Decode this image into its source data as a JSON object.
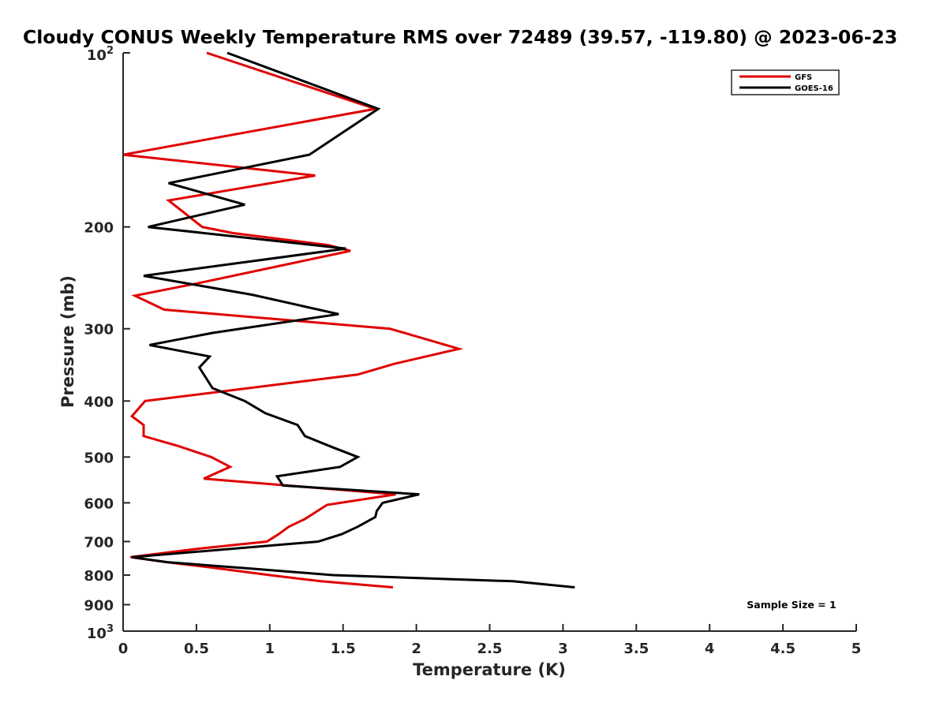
{
  "chart_data": {
    "type": "line",
    "title": "Cloudy CONUS Weekly Temperature RMS over 72489 (39.57, -119.80) @ 2023-06-23",
    "xlabel": "Temperature (K)",
    "ylabel": "Pressure (mb)",
    "xlim": [
      0,
      5
    ],
    "ylim": [
      100,
      1000
    ],
    "y_scale": "log",
    "y_reversed": true,
    "x_ticks": [
      "0",
      "0.5",
      "1",
      "1.5",
      "2",
      "2.5",
      "3",
      "3.5",
      "4",
      "4.5",
      "5"
    ],
    "y_ticks": [
      {
        "value": 100,
        "base": "10",
        "exp": "2"
      },
      {
        "value": 200,
        "label": "200"
      },
      {
        "value": 300,
        "label": "300"
      },
      {
        "value": 400,
        "label": "400"
      },
      {
        "value": 500,
        "label": "500"
      },
      {
        "value": 600,
        "label": "600"
      },
      {
        "value": 700,
        "label": "700"
      },
      {
        "value": 800,
        "label": "800"
      },
      {
        "value": 900,
        "label": "900"
      },
      {
        "value": 1000,
        "base": "10",
        "exp": "3"
      }
    ],
    "grid": false,
    "legend_position": "top-right",
    "annotation": "Sample Size = 1",
    "series": [
      {
        "name": "GFS",
        "color": "#e00000",
        "points": [
          {
            "x": 0.57,
            "p": 100
          },
          {
            "x": 1.72,
            "p": 125
          },
          {
            "x": 0.0,
            "p": 150
          },
          {
            "x": 1.31,
            "p": 163
          },
          {
            "x": 0.31,
            "p": 180
          },
          {
            "x": 0.54,
            "p": 200
          },
          {
            "x": 0.75,
            "p": 205
          },
          {
            "x": 1.4,
            "p": 215
          },
          {
            "x": 1.55,
            "p": 220
          },
          {
            "x": 0.52,
            "p": 250
          },
          {
            "x": 0.08,
            "p": 263
          },
          {
            "x": 0.28,
            "p": 278
          },
          {
            "x": 1.82,
            "p": 300
          },
          {
            "x": 2.29,
            "p": 325
          },
          {
            "x": 1.85,
            "p": 345
          },
          {
            "x": 1.6,
            "p": 360
          },
          {
            "x": 0.15,
            "p": 400
          },
          {
            "x": 0.06,
            "p": 425
          },
          {
            "x": 0.14,
            "p": 440
          },
          {
            "x": 0.14,
            "p": 460
          },
          {
            "x": 0.37,
            "p": 478
          },
          {
            "x": 0.6,
            "p": 500
          },
          {
            "x": 0.73,
            "p": 520
          },
          {
            "x": 0.55,
            "p": 545
          },
          {
            "x": 1.86,
            "p": 580
          },
          {
            "x": 1.39,
            "p": 605
          },
          {
            "x": 1.24,
            "p": 640
          },
          {
            "x": 1.13,
            "p": 660
          },
          {
            "x": 1.06,
            "p": 680
          },
          {
            "x": 0.98,
            "p": 700
          },
          {
            "x": 0.52,
            "p": 720
          },
          {
            "x": 0.05,
            "p": 745
          },
          {
            "x": 0.3,
            "p": 760
          },
          {
            "x": 0.58,
            "p": 775
          },
          {
            "x": 1.0,
            "p": 800
          },
          {
            "x": 1.35,
            "p": 820
          },
          {
            "x": 1.84,
            "p": 840
          }
        ]
      },
      {
        "name": "GOES-16",
        "color": "#000000",
        "points": [
          {
            "x": 0.71,
            "p": 100
          },
          {
            "x": 1.74,
            "p": 125
          },
          {
            "x": 1.27,
            "p": 150
          },
          {
            "x": 0.31,
            "p": 168
          },
          {
            "x": 0.83,
            "p": 183
          },
          {
            "x": 0.17,
            "p": 200
          },
          {
            "x": 1.52,
            "p": 218
          },
          {
            "x": 0.14,
            "p": 243
          },
          {
            "x": 0.88,
            "p": 262
          },
          {
            "x": 1.47,
            "p": 283
          },
          {
            "x": 0.61,
            "p": 305
          },
          {
            "x": 0.18,
            "p": 320
          },
          {
            "x": 0.59,
            "p": 335
          },
          {
            "x": 0.52,
            "p": 350
          },
          {
            "x": 0.61,
            "p": 380
          },
          {
            "x": 0.83,
            "p": 400
          },
          {
            "x": 0.97,
            "p": 420
          },
          {
            "x": 1.19,
            "p": 440
          },
          {
            "x": 1.24,
            "p": 460
          },
          {
            "x": 1.42,
            "p": 480
          },
          {
            "x": 1.6,
            "p": 500
          },
          {
            "x": 1.48,
            "p": 520
          },
          {
            "x": 1.05,
            "p": 540
          },
          {
            "x": 1.09,
            "p": 560
          },
          {
            "x": 2.02,
            "p": 580
          },
          {
            "x": 1.77,
            "p": 600
          },
          {
            "x": 1.73,
            "p": 620
          },
          {
            "x": 1.72,
            "p": 635
          },
          {
            "x": 1.6,
            "p": 660
          },
          {
            "x": 1.49,
            "p": 680
          },
          {
            "x": 1.33,
            "p": 700
          },
          {
            "x": 0.06,
            "p": 745
          },
          {
            "x": 0.3,
            "p": 760
          },
          {
            "x": 0.88,
            "p": 780
          },
          {
            "x": 1.43,
            "p": 800
          },
          {
            "x": 2.66,
            "p": 820
          },
          {
            "x": 3.08,
            "p": 840
          }
        ]
      }
    ]
  }
}
